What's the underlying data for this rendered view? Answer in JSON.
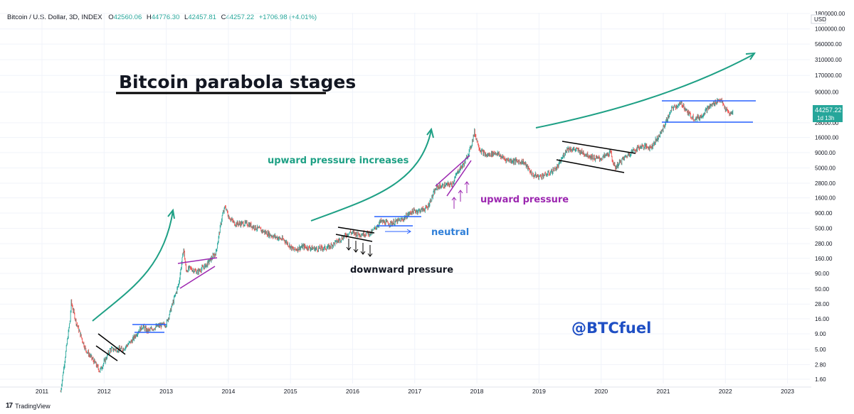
{
  "header": {
    "symbol": "Bitcoin / U.S. Dollar, 3D, INDEX",
    "open_label": "O",
    "open": "42560.06",
    "high_label": "H",
    "high": "44776.30",
    "low_label": "L",
    "low": "42457.81",
    "close_label": "C",
    "close": "44257.22",
    "change": "+1706.98 (+4.01%)"
  },
  "price_badge": {
    "price": "44257.22",
    "countdown": "1d 13h"
  },
  "currency": "USD",
  "brand": "TradingView",
  "colors": {
    "up": "#26a69a",
    "down": "#ef5350",
    "teal_annotation": "#1ea085",
    "blue_annotation": "#2962ff",
    "purple_annotation": "#9c27b0"
  },
  "chart_data": {
    "type": "line",
    "title": "Bitcoin parabola stages",
    "yscale": "log",
    "xlabel": "",
    "ylabel": "",
    "ylim": [
      1.0,
      1800000
    ],
    "xlim": [
      2010.9,
      2023.4
    ],
    "y_ticks": [
      "1800000.00",
      "1000000.00",
      "560000.00",
      "310000.00",
      "170000.00",
      "90000.00",
      "28000.00",
      "16000.00",
      "9000.00",
      "5000.00",
      "2800.00",
      "1600.00",
      "900.00",
      "500.00",
      "280.00",
      "160.00",
      "90.00",
      "50.00",
      "28.00",
      "16.00",
      "9.00",
      "5.00",
      "2.80",
      "1.60"
    ],
    "y_tick_values": [
      1800000,
      1000000,
      560000,
      310000,
      170000,
      90000,
      28000,
      16000,
      9000,
      5000,
      2800,
      1600,
      900,
      500,
      280,
      160,
      90,
      50,
      28,
      16,
      9,
      5,
      2.8,
      1.6
    ],
    "x_ticks": [
      "2011",
      "2012",
      "2013",
      "2014",
      "2015",
      "2016",
      "2017",
      "2018",
      "2019",
      "2020",
      "2021",
      "2022",
      "2023"
    ],
    "x_tick_values": [
      2011,
      2012,
      2013,
      2014,
      2015,
      2016,
      2017,
      2018,
      2019,
      2020,
      2021,
      2022,
      2023
    ],
    "series": [
      {
        "x": [
          2011.3,
          2011.45,
          2011.47,
          2011.55,
          2011.7,
          2011.85,
          2011.93,
          2012.1,
          2012.3,
          2012.45,
          2012.55,
          2012.62,
          2012.7,
          2012.85,
          2013.0,
          2013.1,
          2013.2,
          2013.28,
          2013.32,
          2013.38,
          2013.5,
          2013.65,
          2013.8,
          2013.9,
          2013.95,
          2014.0,
          2014.1,
          2014.3,
          2014.5,
          2014.7,
          2014.9,
          2015.05,
          2015.2,
          2015.4,
          2015.6,
          2015.8,
          2015.95,
          2016.1,
          2016.3,
          2016.45,
          2016.6,
          2016.8,
          2016.95,
          2017.1,
          2017.2,
          2017.35,
          2017.5,
          2017.6,
          2017.7,
          2017.8,
          2017.9,
          2017.96,
          2018.05,
          2018.15,
          2018.3,
          2018.45,
          2018.6,
          2018.75,
          2018.9,
          2019.0,
          2019.15,
          2019.3,
          2019.45,
          2019.6,
          2019.75,
          2019.9,
          2020.0,
          2020.15,
          2020.22,
          2020.35,
          2020.5,
          2020.65,
          2020.8,
          2020.95,
          2021.05,
          2021.15,
          2021.3,
          2021.4,
          2021.5,
          2021.6,
          2021.7,
          2021.85,
          2021.92,
          2022.0,
          2022.08,
          2022.12
        ],
        "values": [
          1.0,
          15,
          30,
          14,
          5,
          3,
          2.2,
          5,
          5,
          7,
          10,
          12,
          10,
          12,
          13,
          28,
          60,
          230,
          100,
          110,
          95,
          125,
          200,
          800,
          1150,
          800,
          600,
          600,
          480,
          380,
          320,
          220,
          250,
          230,
          240,
          330,
          430,
          400,
          420,
          650,
          600,
          700,
          950,
          1000,
          1100,
          2400,
          2600,
          2700,
          4500,
          6000,
          11000,
          19500,
          10000,
          8000,
          9000,
          7000,
          6500,
          6300,
          3800,
          3600,
          4000,
          5200,
          10500,
          10000,
          8500,
          7200,
          7200,
          9000,
          5000,
          7000,
          9500,
          11500,
          11000,
          18000,
          30000,
          50000,
          58000,
          40000,
          33000,
          35000,
          47000,
          63000,
          68000,
          47000,
          38000,
          44257
        ]
      }
    ],
    "annotations": [
      "upward pressure increases",
      "upward pressure",
      "neutral",
      "downward pressure",
      "@BTCfuel"
    ]
  }
}
